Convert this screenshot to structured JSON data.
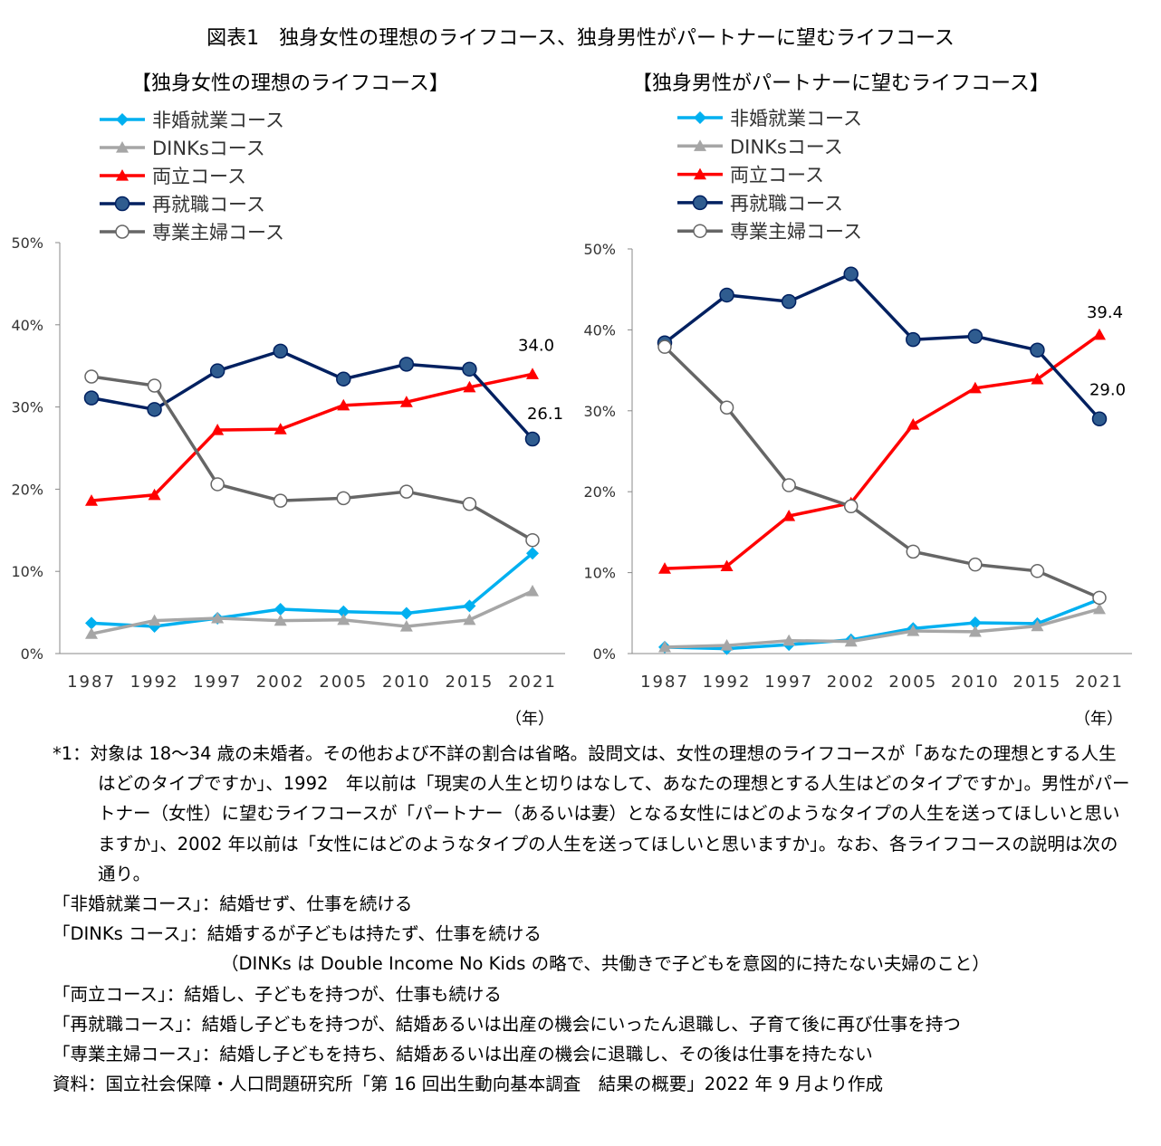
{
  "title": "図表1　独身女性の理想のライフコース、独身男性がパートナーに望むライフコース",
  "chart_data": [
    {
      "type": "line",
      "title": "【独身女性の理想のライフコース】",
      "xlabel": "（年）",
      "categories": [
        "1987",
        "1992",
        "1997",
        "2002",
        "2005",
        "2010",
        "2015",
        "2021"
      ],
      "ylim": [
        0,
        50
      ],
      "yticks": [
        "0%",
        "10%",
        "20%",
        "30%",
        "40%",
        "50%"
      ],
      "grid": false,
      "legend": "top-left",
      "series": [
        {
          "name": "非婚就業コース",
          "color": "#00B0F0",
          "marker": "diamond",
          "values": [
            3.7,
            3.3,
            4.3,
            5.4,
            5.1,
            4.9,
            5.8,
            12.2
          ]
        },
        {
          "name": "DINKsコース",
          "color": "#A6A6A6",
          "marker": "triangle",
          "values": [
            2.4,
            4.0,
            4.3,
            4.0,
            4.1,
            3.3,
            4.1,
            7.6
          ]
        },
        {
          "name": "両立コース",
          "color": "#FF0000",
          "marker": "triangle",
          "values": [
            18.6,
            19.3,
            27.2,
            27.3,
            30.2,
            30.6,
            32.4,
            34.0
          ]
        },
        {
          "name": "再就職コース",
          "color": "#002060",
          "marker": "circle",
          "values": [
            31.1,
            29.7,
            34.4,
            36.8,
            33.4,
            35.2,
            34.6,
            26.1
          ]
        },
        {
          "name": "専業主婦コース",
          "color": "#666666",
          "marker": "open-circle",
          "values": [
            33.7,
            32.6,
            20.6,
            18.6,
            18.9,
            19.7,
            18.2,
            13.8
          ]
        }
      ],
      "data_labels": [
        {
          "series": "両立コース",
          "x": "2021",
          "text": "34.0"
        },
        {
          "series": "再就職コース",
          "x": "2021",
          "text": "26.1"
        }
      ]
    },
    {
      "type": "line",
      "title": "【独身男性がパートナーに望むライフコース】",
      "xlabel": "（年）",
      "categories": [
        "1987",
        "1992",
        "1997",
        "2002",
        "2005",
        "2010",
        "2015",
        "2021"
      ],
      "ylim": [
        0,
        50
      ],
      "yticks": [
        "0%",
        "10%",
        "20%",
        "30%",
        "40%",
        "50%"
      ],
      "grid": false,
      "legend": "top-left",
      "series": [
        {
          "name": "非婚就業コース",
          "color": "#00B0F0",
          "marker": "diamond",
          "values": [
            0.8,
            0.6,
            1.1,
            1.7,
            3.1,
            3.8,
            3.7,
            6.7
          ]
        },
        {
          "name": "DINKsコース",
          "color": "#A6A6A6",
          "marker": "triangle",
          "values": [
            0.8,
            1.0,
            1.6,
            1.5,
            2.8,
            2.7,
            3.4,
            5.5
          ]
        },
        {
          "name": "両立コース",
          "color": "#FF0000",
          "marker": "triangle",
          "values": [
            10.5,
            10.8,
            17.0,
            18.6,
            28.3,
            32.8,
            33.9,
            39.4
          ]
        },
        {
          "name": "再就職コース",
          "color": "#002060",
          "marker": "circle",
          "values": [
            38.4,
            44.3,
            43.5,
            46.9,
            38.8,
            39.2,
            37.5,
            29.0
          ]
        },
        {
          "name": "専業主婦コース",
          "color": "#666666",
          "marker": "open-circle",
          "values": [
            37.9,
            30.4,
            20.8,
            18.2,
            12.6,
            11.0,
            10.2,
            6.9
          ]
        }
      ],
      "data_labels": [
        {
          "series": "両立コース",
          "x": "2021",
          "text": "39.4"
        },
        {
          "series": "再就職コース",
          "x": "2021",
          "text": "29.0"
        }
      ]
    }
  ],
  "notes": [
    "*1：対象は 18～34 歳の未婚者。その他および不詳の割合は省略。設問文は、女性の理想のライフコースが「あなたの理想とする人生はどのタイプですか」、1992　年以前は「現実の人生と切りはなして、あなたの理想とする人生はどのタイプですか」。男性がパートナー（女性）に望むライフコースが「パートナー（あるいは妻）となる女性にはどのようなタイプの人生を送ってほしいと思いますか」、2002 年以前は「女性にはどのようなタイプの人生を送ってほしいと思いますか」。なお、各ライフコースの説明は次の通り。",
    "「非婚就業コース」：結婚せず、仕事を続ける",
    "「DINKs コース」：結婚するが子どもは持たず、仕事を続ける",
    "（DINKs は Double Income No Kids の略で、共働きで子どもを意図的に持たない夫婦のこと）",
    "「両立コース」：結婚し、子どもを持つが、仕事も続ける",
    "「再就職コース」：結婚し子どもを持つが、結婚あるいは出産の機会にいったん退職し、子育て後に再び仕事を持つ",
    "「専業主婦コース」：結婚し子どもを持ち、結婚あるいは出産の機会に退職し、その後は仕事を持たない",
    "資料：国立社会保障・人口問題研究所「第 16 回出生動向基本調査　結果の概要」2022 年 9 月より作成"
  ]
}
